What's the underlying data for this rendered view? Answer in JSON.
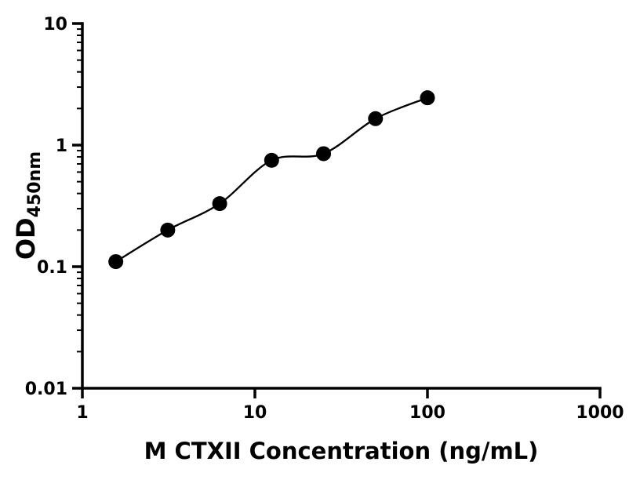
{
  "chart_data": {
    "type": "scatter",
    "title": "",
    "xlabel": "M CTXII Concentration (ng/mL)",
    "ylabel": "OD450nm",
    "ylabel_main": "OD",
    "ylabel_sub": "450nm",
    "x_scale": "log",
    "y_scale": "log",
    "xlim": [
      1,
      1000
    ],
    "ylim": [
      0.01,
      10
    ],
    "x_tick_values": [
      1,
      10,
      100,
      1000
    ],
    "x_tick_labels": [
      "1",
      "10",
      "100",
      "1000"
    ],
    "y_tick_values": [
      0.01,
      0.1,
      1,
      10
    ],
    "y_tick_labels": [
      "0.01",
      "0.1",
      "1",
      "10"
    ],
    "grid": false,
    "legend": false,
    "series": [
      {
        "name": "M CTXII",
        "x": [
          1.563,
          3.125,
          6.25,
          12.5,
          25,
          50,
          100
        ],
        "y": [
          0.11,
          0.2,
          0.33,
          0.75,
          0.85,
          1.65,
          2.45
        ],
        "marker": "circle",
        "marker_color": "#000000",
        "line": "smooth-fit-curve",
        "line_color": "#000000"
      }
    ],
    "colors": {
      "axis": "#000000",
      "text": "#000000",
      "background": "#ffffff"
    }
  }
}
